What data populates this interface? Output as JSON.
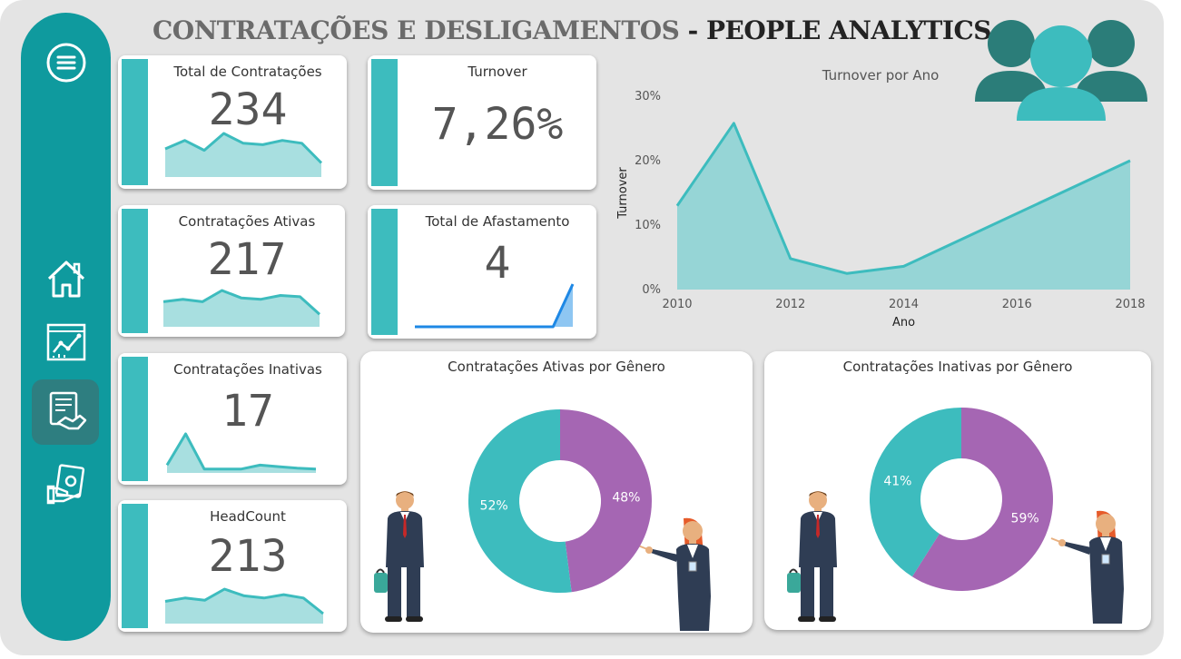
{
  "header": {
    "title_part1": "CONTRATAÇÕES E DESLIGAMENTOS",
    "title_sep": " - ",
    "title_part2": "PEOPLE ANALYTICS"
  },
  "nav": {
    "items": [
      "menu-icon",
      "home-icon",
      "analytics-icon",
      "handshake-document-icon",
      "money-hand-icon"
    ],
    "active": "handshake-document-icon"
  },
  "colors": {
    "teal": "#0f9a9e",
    "accent": "#3dbcbe",
    "area": "#96d5d6",
    "purple": "#a566b3",
    "blue": "#1e88e5"
  },
  "kpis": {
    "total_contratacoes": {
      "label": "Total de Contratações",
      "value": "234",
      "spark": [
        40,
        52,
        38,
        62,
        48,
        46,
        52,
        48,
        20
      ]
    },
    "contratacoes_ativas": {
      "label": "Contratações Ativas",
      "value": "217",
      "spark": [
        40,
        44,
        40,
        58,
        46,
        44,
        50,
        48,
        20
      ]
    },
    "contratacoes_inativas": {
      "label": "Contratações Inativas",
      "value": "17",
      "spark": [
        10,
        50,
        5,
        5,
        5,
        10,
        8,
        6,
        5
      ]
    },
    "headcount": {
      "label": "HeadCount",
      "value": "213",
      "spark": [
        40,
        46,
        42,
        62,
        50,
        46,
        52,
        46,
        18
      ]
    },
    "turnover": {
      "label": "Turnover",
      "value": "7,26%"
    },
    "total_afastamento": {
      "label": "Total de Afastamento",
      "value": "4",
      "spark": [
        0,
        0,
        0,
        0,
        0,
        0,
        0,
        0,
        4
      ]
    }
  },
  "chart_data": [
    {
      "type": "area",
      "title": "Turnover por Ano",
      "xlabel": "Ano",
      "ylabel": "Turnover",
      "x": [
        2010,
        2011,
        2012,
        2013,
        2014,
        2018
      ],
      "values": [
        13,
        25.8,
        4.8,
        2.5,
        3.6,
        20
      ],
      "xticks": [
        "2010",
        "2012",
        "2014",
        "2016",
        "2018"
      ],
      "yticks": [
        "0%",
        "10%",
        "20%",
        "30%"
      ],
      "xlim": [
        2010,
        2018
      ],
      "ylim": [
        0,
        30
      ]
    },
    {
      "type": "pie",
      "title": "Contratações Ativas por Gênero",
      "slices": [
        {
          "label": "48%",
          "value": 48,
          "color": "#a566b3"
        },
        {
          "label": "52%",
          "value": 52,
          "color": "#3dbcbe"
        }
      ]
    },
    {
      "type": "pie",
      "title": "Contratações Inativas por Gênero",
      "slices": [
        {
          "label": "59%",
          "value": 59,
          "color": "#a566b3"
        },
        {
          "label": "41%",
          "value": 41,
          "color": "#3dbcbe"
        }
      ]
    }
  ]
}
